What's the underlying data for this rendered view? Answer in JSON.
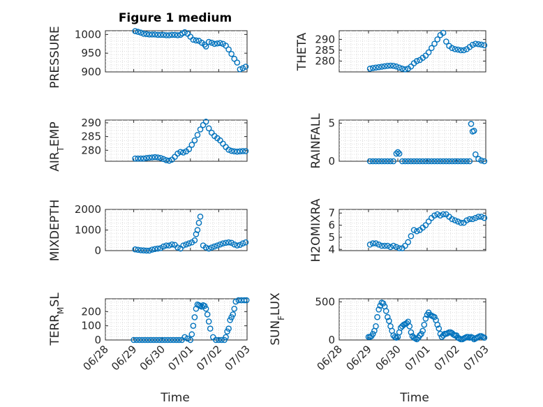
{
  "chart_data": [
    {
      "type": "scatter",
      "title": "Figure 1 medium",
      "ylabel": "PRESSURE",
      "xlabel": "",
      "xlim": [
        0,
        5
      ],
      "ylim": [
        900,
        1010
      ],
      "yticks": [
        900,
        950,
        1000
      ],
      "xticks": [],
      "series": [
        {
          "x": [
            1.05,
            1.15,
            1.25,
            1.35,
            1.45,
            1.55,
            1.65,
            1.75,
            1.85,
            1.95,
            2.05,
            2.15,
            2.25,
            2.35,
            2.45,
            2.55,
            2.65,
            2.72,
            2.8,
            2.9,
            3.0,
            3.1,
            3.2,
            3.3,
            3.4,
            3.5,
            3.55,
            3.65,
            3.75,
            3.85,
            3.95,
            4.05,
            4.15,
            4.25,
            4.35,
            4.45,
            4.55,
            4.65,
            4.75,
            4.85,
            4.95
          ],
          "y": [
            1009,
            1007,
            1005,
            1002,
            1001,
            1000,
            1000,
            1000,
            999,
            999,
            999,
            998,
            998,
            999,
            999,
            998,
            999,
            1003,
            1006,
            1002,
            994,
            986,
            984,
            983,
            978,
            973,
            968,
            980,
            978,
            975,
            976,
            977,
            975,
            970,
            960,
            948,
            935,
            925,
            907,
            910,
            914
          ]
        }
      ]
    },
    {
      "type": "scatter",
      "title": "",
      "ylabel": "THETA",
      "xlabel": "",
      "xlim": [
        0,
        5
      ],
      "ylim": [
        275,
        294
      ],
      "yticks": [
        280,
        285,
        290
      ],
      "xticks": [],
      "series": [
        {
          "x": [
            1.05,
            1.15,
            1.25,
            1.35,
            1.45,
            1.55,
            1.65,
            1.75,
            1.85,
            1.95,
            2.05,
            2.15,
            2.25,
            2.35,
            2.45,
            2.55,
            2.65,
            2.75,
            2.85,
            2.95,
            3.05,
            3.15,
            3.25,
            3.35,
            3.45,
            3.55,
            3.65,
            3.75,
            3.85,
            3.95,
            4.05,
            4.15,
            4.25,
            4.35,
            4.45,
            4.55,
            4.65,
            4.75,
            4.85,
            4.95
          ],
          "y": [
            276.5,
            276.8,
            277,
            277.2,
            277.4,
            277.6,
            277.8,
            277.9,
            277.8,
            277.5,
            277,
            276.5,
            276.2,
            276.5,
            277.5,
            279,
            280,
            280.5,
            281.5,
            282.5,
            284,
            286,
            288,
            290,
            292,
            293,
            289,
            287,
            286,
            285.5,
            285.3,
            285,
            285,
            285.5,
            286.5,
            287.5,
            288,
            287.8,
            287.6,
            287.3
          ]
        }
      ]
    },
    {
      "type": "scatter",
      "title": "",
      "ylabel": "AIR_TEMP",
      "xlabel": "",
      "xlim": [
        0,
        5
      ],
      "ylim": [
        276,
        291
      ],
      "yticks": [
        280,
        285,
        290
      ],
      "xticks": [],
      "series": [
        {
          "x": [
            1.05,
            1.15,
            1.25,
            1.35,
            1.45,
            1.55,
            1.65,
            1.75,
            1.85,
            1.95,
            2.05,
            2.15,
            2.25,
            2.35,
            2.45,
            2.55,
            2.65,
            2.75,
            2.85,
            2.95,
            3.05,
            3.15,
            3.25,
            3.35,
            3.45,
            3.55,
            3.65,
            3.75,
            3.85,
            3.95,
            4.05,
            4.15,
            4.25,
            4.35,
            4.45,
            4.55,
            4.65,
            4.75,
            4.85,
            4.95
          ],
          "y": [
            277,
            277,
            277,
            277,
            277.2,
            277.3,
            277.4,
            277.5,
            277.4,
            277.2,
            276.8,
            276.4,
            276.2,
            276.6,
            277.6,
            278.8,
            279.4,
            279.2,
            279.6,
            280.4,
            282,
            283.6,
            285.6,
            287.6,
            289.2,
            290.4,
            288,
            286.4,
            285.2,
            284.4,
            283.6,
            282.4,
            281.2,
            280.2,
            279.8,
            279.6,
            279.5,
            279.6,
            279.7,
            279.7
          ]
        }
      ]
    },
    {
      "type": "scatter",
      "title": "",
      "ylabel": "RAINFALL",
      "xlabel": "",
      "xlim": [
        0,
        5
      ],
      "ylim": [
        0,
        5.4
      ],
      "yticks": [
        0,
        5
      ],
      "xticks": [],
      "series": [
        {
          "x": [
            1.05,
            1.15,
            1.25,
            1.35,
            1.45,
            1.55,
            1.65,
            1.75,
            1.85,
            1.95,
            2.0,
            2.05,
            2.15,
            2.25,
            2.35,
            2.45,
            2.55,
            2.65,
            2.75,
            2.85,
            2.95,
            3.05,
            3.15,
            3.25,
            3.35,
            3.45,
            3.55,
            3.65,
            3.75,
            3.85,
            3.95,
            4.05,
            4.15,
            4.25,
            4.35,
            4.45,
            4.5,
            4.55,
            4.6,
            4.65,
            4.75,
            4.85,
            4.95
          ],
          "y": [
            0,
            0,
            0,
            0,
            0,
            0,
            0,
            0,
            0,
            1.0,
            1.2,
            1.0,
            0,
            0,
            0,
            0,
            0,
            0,
            0,
            0,
            0,
            0,
            0,
            0,
            0,
            0,
            0,
            0,
            0,
            0,
            0,
            0,
            0,
            0,
            0,
            0,
            4.9,
            3.9,
            4.0,
            0.9,
            0.3,
            0.1,
            0
          ]
        }
      ]
    },
    {
      "type": "scatter",
      "title": "",
      "ylabel": "MIXDEPTH",
      "xlabel": "",
      "xlim": [
        0,
        5
      ],
      "ylim": [
        0,
        2000
      ],
      "yticks": [
        0,
        1000,
        2000
      ],
      "xticks": [],
      "series": [
        {
          "x": [
            1.05,
            1.15,
            1.25,
            1.35,
            1.45,
            1.55,
            1.65,
            1.75,
            1.85,
            1.95,
            2.05,
            2.15,
            2.25,
            2.35,
            2.45,
            2.55,
            2.65,
            2.75,
            2.85,
            2.95,
            3.05,
            3.15,
            3.2,
            3.25,
            3.3,
            3.35,
            3.45,
            3.55,
            3.65,
            3.75,
            3.85,
            3.95,
            4.05,
            4.15,
            4.25,
            4.35,
            4.45,
            4.55,
            4.65,
            4.75,
            4.85,
            4.95
          ],
          "y": [
            60,
            40,
            20,
            10,
            0,
            0,
            50,
            80,
            100,
            120,
            200,
            250,
            250,
            300,
            280,
            150,
            100,
            250,
            300,
            350,
            400,
            500,
            800,
            1000,
            1350,
            1650,
            250,
            150,
            100,
            150,
            200,
            250,
            300,
            350,
            380,
            400,
            380,
            300,
            250,
            280,
            350,
            400
          ]
        }
      ]
    },
    {
      "type": "scatter",
      "title": "",
      "ylabel": "H2OMIXRA",
      "xlabel": "",
      "xlim": [
        0,
        5
      ],
      "ylim": [
        3.9,
        7.3
      ],
      "yticks": [
        4,
        5,
        6,
        7
      ],
      "xticks": [],
      "series": [
        {
          "x": [
            1.05,
            1.15,
            1.25,
            1.35,
            1.45,
            1.55,
            1.65,
            1.75,
            1.85,
            1.95,
            2.05,
            2.15,
            2.25,
            2.35,
            2.45,
            2.55,
            2.65,
            2.75,
            2.85,
            2.95,
            3.05,
            3.15,
            3.25,
            3.35,
            3.45,
            3.55,
            3.65,
            3.75,
            3.85,
            3.95,
            4.05,
            4.15,
            4.25,
            4.35,
            4.45,
            4.55,
            4.65,
            4.75,
            4.85,
            4.95
          ],
          "y": [
            4.4,
            4.5,
            4.5,
            4.4,
            4.3,
            4.3,
            4.3,
            4.2,
            4.3,
            4.2,
            4.1,
            4.1,
            4.3,
            4.6,
            5.1,
            5.6,
            5.5,
            5.6,
            5.8,
            6.0,
            6.3,
            6.6,
            6.8,
            6.9,
            6.8,
            6.9,
            6.9,
            6.7,
            6.5,
            6.4,
            6.3,
            6.2,
            6.2,
            6.4,
            6.5,
            6.5,
            6.6,
            6.7,
            6.7,
            6.6
          ]
        }
      ]
    },
    {
      "type": "scatter",
      "title": "",
      "ylabel": "TERR_MSL",
      "xlabel": "Time",
      "xlim": [
        0,
        5
      ],
      "ylim": [
        0,
        290
      ],
      "yticks": [
        0,
        100,
        200
      ],
      "xticks": [
        "06/28",
        "06/29",
        "06/30",
        "07/01",
        "07/02",
        "07/03"
      ],
      "series": [
        {
          "x": [
            1.0,
            1.1,
            1.2,
            1.3,
            1.4,
            1.5,
            1.6,
            1.7,
            1.8,
            1.9,
            2.0,
            2.1,
            2.2,
            2.3,
            2.4,
            2.5,
            2.6,
            2.7,
            2.8,
            2.9,
            3.0,
            3.05,
            3.1,
            3.15,
            3.2,
            3.25,
            3.3,
            3.35,
            3.4,
            3.45,
            3.5,
            3.55,
            3.6,
            3.65,
            3.7,
            3.8,
            3.9,
            4.0,
            4.1,
            4.2,
            4.25,
            4.3,
            4.35,
            4.4,
            4.45,
            4.5,
            4.55,
            4.6,
            4.7,
            4.8,
            4.9,
            4.98
          ],
          "y": [
            0,
            0,
            0,
            0,
            0,
            0,
            0,
            0,
            0,
            0,
            0,
            0,
            0,
            0,
            0,
            0,
            0,
            0,
            20,
            10,
            0,
            40,
            100,
            160,
            220,
            250,
            245,
            240,
            235,
            245,
            240,
            220,
            180,
            130,
            80,
            20,
            0,
            0,
            0,
            0,
            20,
            60,
            80,
            140,
            160,
            180,
            220,
            270,
            280,
            280,
            280,
            280
          ]
        }
      ]
    },
    {
      "type": "scatter",
      "title": "",
      "ylabel": "SUN_FLUX",
      "xlabel": "Time",
      "xlim": [
        0,
        5
      ],
      "ylim": [
        0,
        540
      ],
      "yticks": [
        0,
        500
      ],
      "xticks": [
        "06/28",
        "06/29",
        "06/30",
        "07/01",
        "07/02",
        "07/03"
      ],
      "series": [
        {
          "x": [
            1.0,
            1.05,
            1.1,
            1.15,
            1.2,
            1.25,
            1.3,
            1.35,
            1.4,
            1.45,
            1.5,
            1.55,
            1.6,
            1.65,
            1.7,
            1.75,
            1.8,
            1.85,
            1.9,
            1.95,
            2.0,
            2.05,
            2.1,
            2.15,
            2.2,
            2.25,
            2.3,
            2.35,
            2.4,
            2.45,
            2.5,
            2.55,
            2.6,
            2.65,
            2.7,
            2.75,
            2.8,
            2.85,
            2.9,
            2.95,
            3.0,
            3.05,
            3.1,
            3.15,
            3.2,
            3.25,
            3.3,
            3.35,
            3.4,
            3.45,
            3.5,
            3.55,
            3.6,
            3.65,
            3.7,
            3.75,
            3.8,
            3.85,
            3.9,
            3.95,
            4.0,
            4.05,
            4.1,
            4.15,
            4.2,
            4.25,
            4.3,
            4.35,
            4.4,
            4.45,
            4.5,
            4.55,
            4.6,
            4.65,
            4.7,
            4.75,
            4.8,
            4.85,
            4.9,
            4.95
          ],
          "y": [
            40,
            40,
            50,
            80,
            120,
            180,
            300,
            400,
            450,
            490,
            480,
            440,
            380,
            300,
            250,
            180,
            120,
            60,
            40,
            30,
            40,
            100,
            160,
            180,
            200,
            210,
            220,
            240,
            180,
            100,
            50,
            30,
            20,
            10,
            30,
            60,
            80,
            120,
            200,
            280,
            330,
            360,
            330,
            320,
            310,
            300,
            260,
            200,
            150,
            80,
            40,
            60,
            80,
            80,
            90,
            100,
            100,
            90,
            70,
            60,
            60,
            30,
            20,
            10,
            10,
            20,
            30,
            40,
            40,
            30,
            40,
            30,
            10,
            20,
            30,
            40,
            50,
            50,
            40,
            30
          ]
        }
      ]
    }
  ]
}
